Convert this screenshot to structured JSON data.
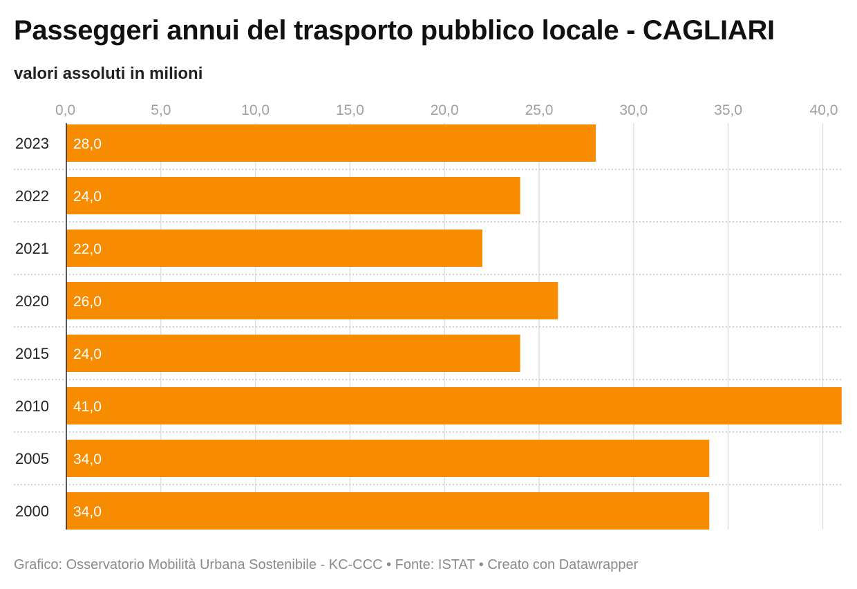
{
  "header": {
    "title": "Passeggeri annui del trasporto pubblico locale - CAGLIARI",
    "subtitle": "valori assoluti in milioni"
  },
  "footer": {
    "text": "Grafico: Osservatorio Mobilità Urbana Sostenibile - KC-CCC • Fonte: ISTAT • Creato con Datawrapper"
  },
  "chart_data": {
    "type": "bar",
    "orientation": "horizontal",
    "categories": [
      "2023",
      "2022",
      "2021",
      "2020",
      "2015",
      "2010",
      "2005",
      "2000"
    ],
    "values": [
      28.0,
      24.0,
      22.0,
      26.0,
      24.0,
      41.0,
      34.0,
      34.0
    ],
    "value_labels": [
      "28,0",
      "24,0",
      "22,0",
      "26,0",
      "24,0",
      "41,0",
      "34,0",
      "34,0"
    ],
    "xlim": [
      0,
      41
    ],
    "x_ticks": [
      0,
      5,
      10,
      15,
      20,
      25,
      30,
      35,
      40
    ],
    "x_tick_labels": [
      "0,0",
      "5,0",
      "10,0",
      "15,0",
      "20,0",
      "25,0",
      "30,0",
      "35,0",
      "40,0"
    ],
    "axis_position": "top",
    "grid": true,
    "bar_color": "#f78c00"
  }
}
